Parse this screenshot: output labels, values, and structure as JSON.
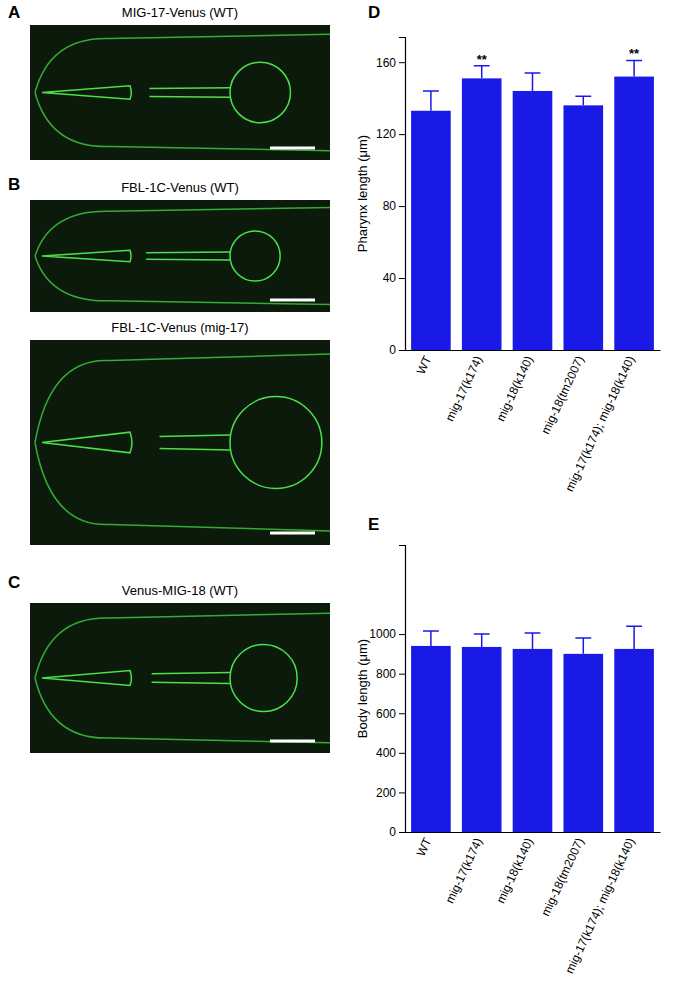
{
  "chart_data": [
    {
      "type": "bar",
      "annotations": [
        "D"
      ],
      "y_label": "Pharynx length (μm)",
      "categories": [
        "WT",
        "mig-17(k174)",
        "mig-18(k140)",
        "mig-18(tm2007)",
        "mig-17(k174); mig-18(k140)"
      ],
      "values": [
        133,
        151,
        144,
        136,
        152
      ],
      "errors": [
        11,
        7,
        10,
        5,
        9
      ],
      "significance": [
        null,
        "**",
        null,
        null,
        "**"
      ],
      "color": "#1a1ae6",
      "ylim": [
        0,
        174
      ],
      "yticks": [
        0,
        40,
        80,
        120,
        160
      ],
      "grid": false
    },
    {
      "type": "bar",
      "annotations": [
        "E"
      ],
      "y_label": "Body length (μm)",
      "categories": [
        "WT",
        "mig-17(k174)",
        "mig-18(k140)",
        "mig-18(tm2007)",
        "mig-17(k174); mig-18(k140)"
      ],
      "values": [
        940,
        935,
        925,
        900,
        925
      ],
      "errors": [
        75,
        65,
        80,
        80,
        115
      ],
      "color": "#1a1ae6",
      "ylim": [
        0,
        1450
      ],
      "yticks": [
        0,
        200,
        400,
        600,
        800,
        1000
      ],
      "grid": false
    }
  ],
  "image_panels": [
    {
      "label": "A",
      "images": [
        {
          "title": "MIG-17-Venus (WT)"
        }
      ]
    },
    {
      "label": "B",
      "images": [
        {
          "title": "FBL-1C-Venus (WT)"
        },
        {
          "title": "FBL-1C-Venus (mig-17)"
        }
      ]
    },
    {
      "label": "C",
      "images": [
        {
          "title": "Venus-MIG-18 (WT)"
        }
      ]
    }
  ]
}
